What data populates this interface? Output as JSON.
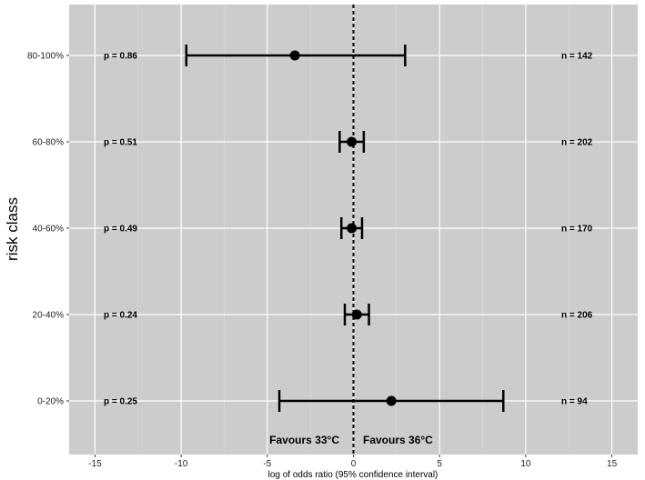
{
  "chart_data": {
    "type": "forest",
    "xlabel": "log of odds ratio (95% confidence interval)",
    "ylabel": "risk class",
    "xlim": [
      -16.5,
      16.5
    ],
    "x_ticks": [
      -15,
      -10,
      -5,
      0,
      5,
      10,
      15
    ],
    "grid": true,
    "background": "#cccccc",
    "reference_line": {
      "x": 0,
      "style": "dashed"
    },
    "categories": [
      "80-100%",
      "60-80%",
      "40-60%",
      "20-40%",
      "0-20%"
    ],
    "points": [
      {
        "label": "80-100%",
        "estimate": -3.4,
        "lower": -9.7,
        "upper": 3.0,
        "p_text": "p = 0.86",
        "n_text": "n = 142"
      },
      {
        "label": "60-80%",
        "estimate": -0.1,
        "lower": -0.8,
        "upper": 0.6,
        "p_text": "p = 0.51",
        "n_text": "n = 202"
      },
      {
        "label": "40-60%",
        "estimate": -0.1,
        "lower": -0.7,
        "upper": 0.5,
        "p_text": "p = 0.49",
        "n_text": "n = 170"
      },
      {
        "label": "20-40%",
        "estimate": 0.2,
        "lower": -0.5,
        "upper": 0.9,
        "p_text": "p = 0.24",
        "n_text": "n = 206"
      },
      {
        "label": "0-20%",
        "estimate": 2.2,
        "lower": -4.3,
        "upper": 8.7,
        "p_text": "p = 0.25",
        "n_text": "n = 94"
      }
    ],
    "annotations": {
      "left": "Favours 33°C",
      "right": "Favours 36°C"
    }
  }
}
